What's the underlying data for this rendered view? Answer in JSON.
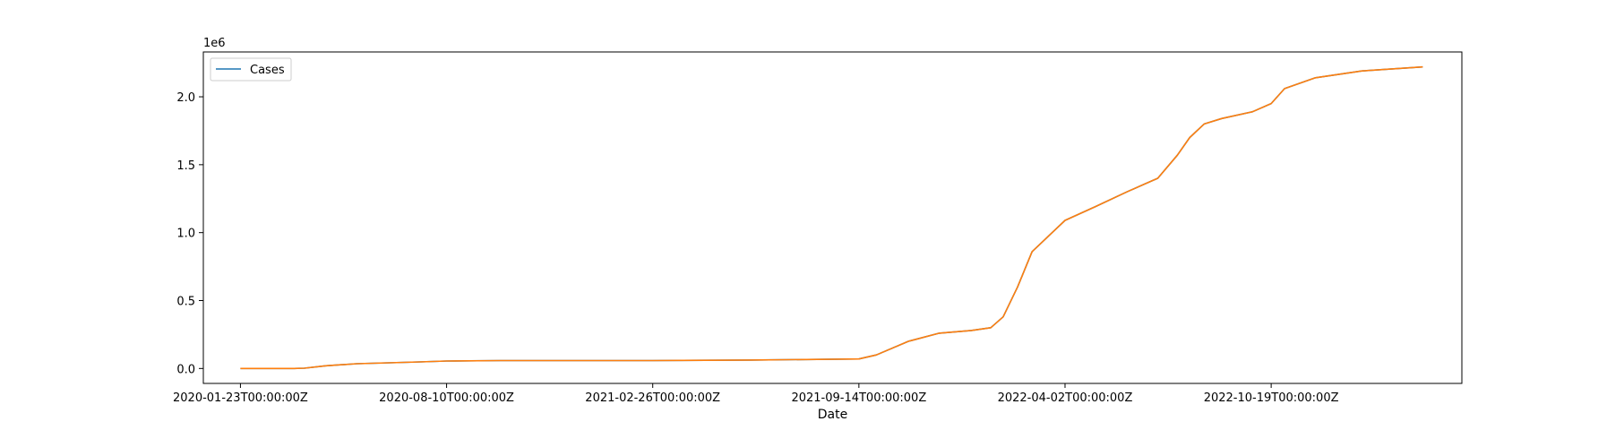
{
  "chart_data": {
    "type": "line",
    "title": "",
    "xlabel": "Date",
    "ylabel": "",
    "y_offset_text": "1e6",
    "x_tick_labels": [
      "2020-01-23T00:00:00Z",
      "2020-08-10T00:00:00Z",
      "2021-02-26T00:00:00Z",
      "2021-09-14T00:00:00Z",
      "2022-04-02T00:00:00Z",
      "2022-10-19T00:00:00Z"
    ],
    "y_ticks": [
      0.0,
      0.5,
      1.0,
      1.5,
      2.0
    ],
    "y_tick_labels": [
      "0.0",
      "0.5",
      "1.0",
      "1.5",
      "2.0"
    ],
    "x_range": [
      "2019-12-18",
      "2023-04-22"
    ],
    "ylim": [
      -0.11,
      2.33
    ],
    "y_unit_multiplier": 1000000,
    "grid": false,
    "legend": {
      "placement": "upper-left",
      "entries": [
        {
          "label": "Cases",
          "color": "#1f77b4"
        }
      ]
    },
    "series": [
      {
        "name": "Cases",
        "color": "#1f77b4",
        "x": [
          "2020-01-23",
          "2020-03-15",
          "2020-03-25",
          "2020-04-15",
          "2020-05-15",
          "2020-06-15",
          "2020-07-15",
          "2020-08-10",
          "2020-10-01",
          "2021-02-26",
          "2021-06-01",
          "2021-09-14",
          "2021-10-01",
          "2021-11-01",
          "2021-12-01",
          "2022-01-01",
          "2022-01-20",
          "2022-02-01",
          "2022-02-15",
          "2022-03-01",
          "2022-04-02",
          "2022-05-01",
          "2022-06-01",
          "2022-07-01",
          "2022-07-20",
          "2022-08-01",
          "2022-08-15",
          "2022-09-01",
          "2022-10-01",
          "2022-10-19",
          "2022-11-01",
          "2022-12-01",
          "2023-01-15",
          "2023-03-15"
        ],
        "values": [
          0.0,
          0.0,
          0.002,
          0.02,
          0.035,
          0.042,
          0.048,
          0.055,
          0.058,
          0.058,
          0.062,
          0.07,
          0.1,
          0.2,
          0.26,
          0.28,
          0.3,
          0.38,
          0.6,
          0.86,
          1.09,
          1.19,
          1.3,
          1.4,
          1.57,
          1.7,
          1.8,
          1.84,
          1.89,
          1.95,
          2.06,
          2.14,
          2.19,
          2.22
        ]
      },
      {
        "name": "",
        "color": "#ff7f0e",
        "x": [
          "2020-01-23",
          "2020-03-15",
          "2020-03-25",
          "2020-04-15",
          "2020-05-15",
          "2020-06-15",
          "2020-07-15",
          "2020-08-10",
          "2020-10-01",
          "2021-02-26",
          "2021-06-01",
          "2021-09-14",
          "2021-10-01",
          "2021-11-01",
          "2021-12-01",
          "2022-01-01",
          "2022-01-20",
          "2022-02-01",
          "2022-02-15",
          "2022-03-01",
          "2022-04-02",
          "2022-05-01",
          "2022-06-01",
          "2022-07-01",
          "2022-07-20",
          "2022-08-01",
          "2022-08-15",
          "2022-09-01",
          "2022-10-01",
          "2022-10-19",
          "2022-11-01",
          "2022-12-01",
          "2023-01-15",
          "2023-03-15"
        ],
        "values": [
          0.0,
          0.0,
          0.002,
          0.02,
          0.035,
          0.042,
          0.048,
          0.055,
          0.058,
          0.058,
          0.062,
          0.07,
          0.1,
          0.2,
          0.26,
          0.28,
          0.3,
          0.38,
          0.6,
          0.86,
          1.09,
          1.19,
          1.3,
          1.4,
          1.57,
          1.7,
          1.8,
          1.84,
          1.89,
          1.95,
          2.06,
          2.14,
          2.19,
          2.22
        ]
      }
    ]
  }
}
